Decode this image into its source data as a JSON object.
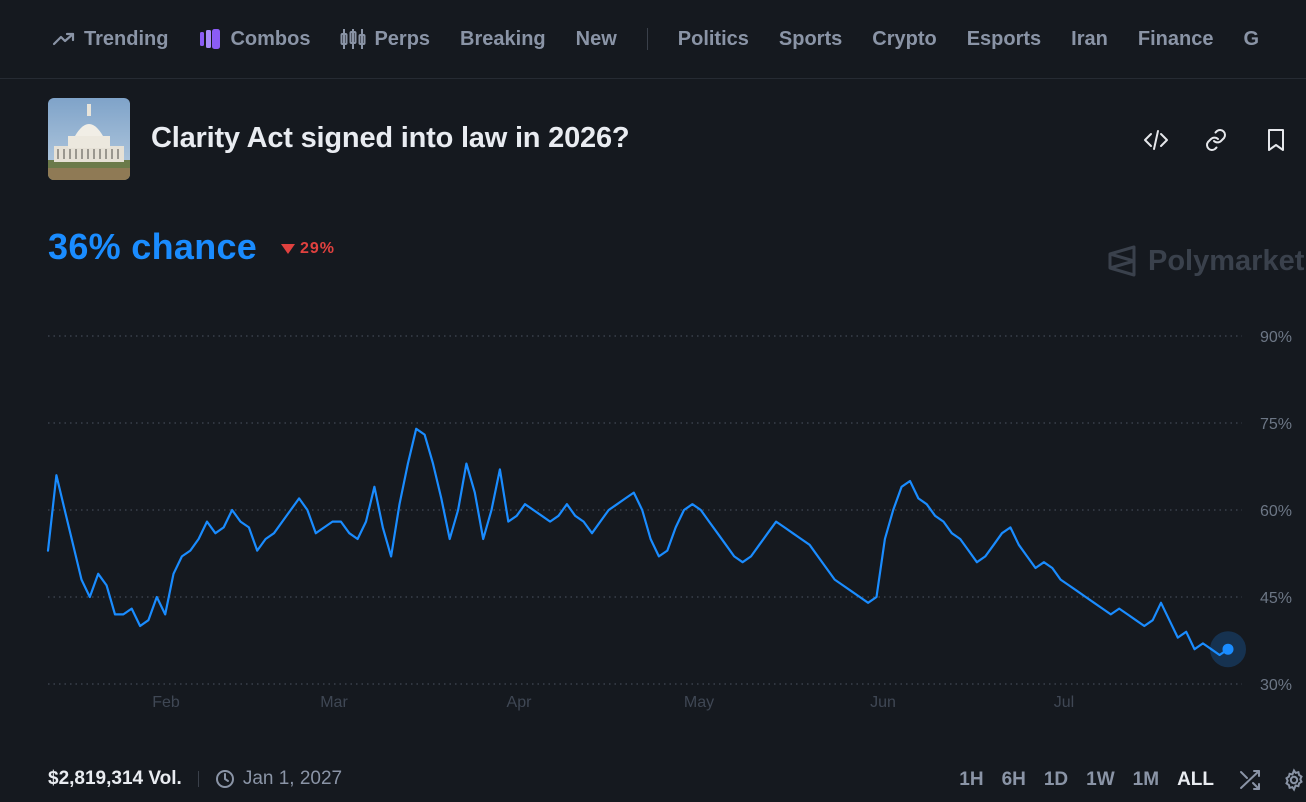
{
  "nav": {
    "items": [
      {
        "label": "Trending",
        "icon": "trending-icon"
      },
      {
        "label": "Combos",
        "icon": "combos-icon"
      },
      {
        "label": "Perps",
        "icon": "perps-icon"
      },
      {
        "label": "Breaking"
      },
      {
        "label": "New"
      },
      {
        "label": "Politics"
      },
      {
        "label": "Sports"
      },
      {
        "label": "Crypto"
      },
      {
        "label": "Esports"
      },
      {
        "label": "Iran"
      },
      {
        "label": "Finance"
      },
      {
        "label": "G"
      }
    ]
  },
  "market": {
    "title": "Clarity Act signed into law in 2026?",
    "chance": "36% chance",
    "change": "29%",
    "change_direction": "down",
    "watermark": "Polymarket",
    "volume": "$2,819,314 Vol.",
    "end_date": "Jan 1, 2027"
  },
  "colors": {
    "accent": "#1a8cff",
    "negative": "#e0413f",
    "background": "#15191f"
  },
  "time_ranges": [
    "1H",
    "6H",
    "1D",
    "1W",
    "1M",
    "ALL"
  ],
  "active_range": "ALL",
  "chart_data": {
    "type": "line",
    "x_ticks": [
      "Feb",
      "Mar",
      "Apr",
      "May",
      "Jun",
      "Jul"
    ],
    "y_ticks": [
      "90%",
      "75%",
      "60%",
      "45%",
      "30%"
    ],
    "ylim": [
      30,
      90
    ],
    "grid": true,
    "series": [
      {
        "values": [
          [
            0,
            53
          ],
          [
            1,
            66
          ],
          [
            2,
            60
          ],
          [
            3,
            54
          ],
          [
            4,
            48
          ],
          [
            5,
            45
          ],
          [
            6,
            49
          ],
          [
            7,
            47
          ],
          [
            8,
            42
          ],
          [
            9,
            42
          ],
          [
            10,
            43
          ],
          [
            11,
            40
          ],
          [
            12,
            41
          ],
          [
            13,
            45
          ],
          [
            14,
            42
          ],
          [
            15,
            49
          ],
          [
            16,
            52
          ],
          [
            17,
            53
          ],
          [
            18,
            55
          ],
          [
            19,
            58
          ],
          [
            20,
            56
          ],
          [
            21,
            57
          ],
          [
            22,
            60
          ],
          [
            23,
            58
          ],
          [
            24,
            57
          ],
          [
            25,
            53
          ],
          [
            26,
            55
          ],
          [
            27,
            56
          ],
          [
            28,
            58
          ],
          [
            29,
            60
          ],
          [
            30,
            62
          ],
          [
            31,
            60
          ],
          [
            32,
            56
          ],
          [
            33,
            57
          ],
          [
            34,
            58
          ],
          [
            35,
            58
          ],
          [
            36,
            56
          ],
          [
            37,
            55
          ],
          [
            38,
            58
          ],
          [
            39,
            64
          ],
          [
            40,
            57
          ],
          [
            41,
            52
          ],
          [
            42,
            61
          ],
          [
            43,
            68
          ],
          [
            44,
            74
          ],
          [
            45,
            73
          ],
          [
            46,
            68
          ],
          [
            47,
            62
          ],
          [
            48,
            55
          ],
          [
            49,
            60
          ],
          [
            50,
            68
          ],
          [
            51,
            63
          ],
          [
            52,
            55
          ],
          [
            53,
            60
          ],
          [
            54,
            67
          ],
          [
            55,
            58
          ],
          [
            56,
            59
          ],
          [
            57,
            61
          ],
          [
            58,
            60
          ],
          [
            59,
            59
          ],
          [
            60,
            58
          ],
          [
            61,
            59
          ],
          [
            62,
            61
          ],
          [
            63,
            59
          ],
          [
            64,
            58
          ],
          [
            65,
            56
          ],
          [
            66,
            58
          ],
          [
            67,
            60
          ],
          [
            68,
            61
          ],
          [
            69,
            62
          ],
          [
            70,
            63
          ],
          [
            71,
            60
          ],
          [
            72,
            55
          ],
          [
            73,
            52
          ],
          [
            74,
            53
          ],
          [
            75,
            57
          ],
          [
            76,
            60
          ],
          [
            77,
            61
          ],
          [
            78,
            60
          ],
          [
            79,
            58
          ],
          [
            80,
            56
          ],
          [
            81,
            54
          ],
          [
            82,
            52
          ],
          [
            83,
            51
          ],
          [
            84,
            52
          ],
          [
            85,
            54
          ],
          [
            86,
            56
          ],
          [
            87,
            58
          ],
          [
            88,
            57
          ],
          [
            89,
            56
          ],
          [
            90,
            55
          ],
          [
            91,
            54
          ],
          [
            92,
            52
          ],
          [
            93,
            50
          ],
          [
            94,
            48
          ],
          [
            95,
            47
          ],
          [
            96,
            46
          ],
          [
            97,
            45
          ],
          [
            98,
            44
          ],
          [
            99,
            45
          ],
          [
            100,
            55
          ],
          [
            101,
            60
          ],
          [
            102,
            64
          ],
          [
            103,
            65
          ],
          [
            104,
            62
          ],
          [
            105,
            61
          ],
          [
            106,
            59
          ],
          [
            107,
            58
          ],
          [
            108,
            56
          ],
          [
            109,
            55
          ],
          [
            110,
            53
          ],
          [
            111,
            51
          ],
          [
            112,
            52
          ],
          [
            113,
            54
          ],
          [
            114,
            56
          ],
          [
            115,
            57
          ],
          [
            116,
            54
          ],
          [
            117,
            52
          ],
          [
            118,
            50
          ],
          [
            119,
            51
          ],
          [
            120,
            50
          ],
          [
            121,
            48
          ],
          [
            122,
            47
          ],
          [
            123,
            46
          ],
          [
            124,
            45
          ],
          [
            125,
            44
          ],
          [
            126,
            43
          ],
          [
            127,
            42
          ],
          [
            128,
            43
          ],
          [
            129,
            42
          ],
          [
            130,
            41
          ],
          [
            131,
            40
          ],
          [
            132,
            41
          ],
          [
            133,
            44
          ],
          [
            134,
            41
          ],
          [
            135,
            38
          ],
          [
            136,
            39
          ],
          [
            137,
            36
          ],
          [
            138,
            37
          ],
          [
            139,
            36
          ],
          [
            140,
            35
          ],
          [
            141,
            36
          ]
        ]
      }
    ],
    "current_value": 36
  }
}
